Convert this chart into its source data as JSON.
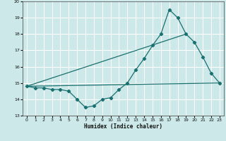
{
  "xlabel": "Humidex (Indice chaleur)",
  "ylabel": "",
  "xlim": [
    -0.5,
    23.5
  ],
  "ylim": [
    13,
    20
  ],
  "yticks": [
    13,
    14,
    15,
    16,
    17,
    18,
    19,
    20
  ],
  "xticks": [
    0,
    1,
    2,
    3,
    4,
    5,
    6,
    7,
    8,
    9,
    10,
    11,
    12,
    13,
    14,
    15,
    16,
    17,
    18,
    19,
    20,
    21,
    22,
    23
  ],
  "background_color": "#cce8e8",
  "grid_color": "#ffffff",
  "line_color": "#1a7070",
  "series": [
    {
      "x": [
        0,
        1,
        2,
        3,
        4,
        5,
        6,
        7,
        8,
        9,
        10,
        11,
        12,
        13,
        14,
        15,
        16,
        17,
        18,
        19,
        20,
        21,
        22,
        23
      ],
      "y": [
        14.8,
        14.7,
        14.7,
        14.6,
        14.6,
        14.5,
        14.0,
        13.5,
        13.6,
        14.0,
        14.1,
        14.6,
        15.0,
        15.8,
        16.5,
        17.3,
        18.0,
        19.5,
        19.0,
        18.0,
        17.5,
        16.6,
        15.6,
        15.0
      ]
    },
    {
      "x": [
        0,
        23
      ],
      "y": [
        14.8,
        15.0
      ]
    },
    {
      "x": [
        0,
        19
      ],
      "y": [
        14.8,
        18.0
      ]
    }
  ]
}
